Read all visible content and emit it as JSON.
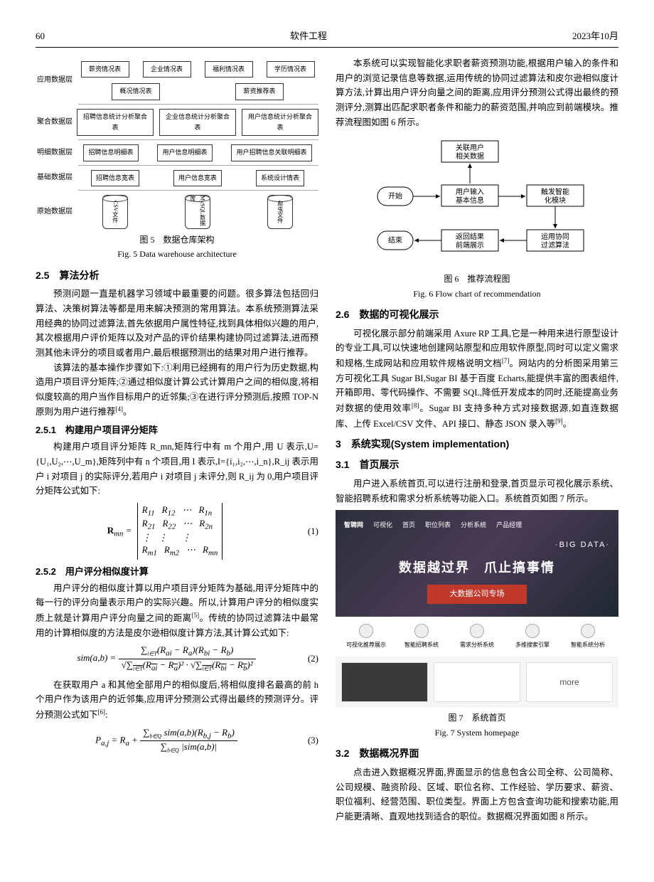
{
  "header": {
    "page_num": "60",
    "journal": "软件工程",
    "date": "2023年10月"
  },
  "fig5": {
    "layers": [
      {
        "label": "应用数据层",
        "boxes": [
          "薪资情况表",
          "企业情况表",
          "福利情况表",
          "学历情况表",
          "概况情况表",
          "薪资推荐表"
        ]
      },
      {
        "label": "聚合数据层",
        "boxes": [
          "招聘信息统计分析聚合表",
          "企业信息统计分析聚合表",
          "用户信息统计分析聚合表"
        ]
      },
      {
        "label": "明细数据层",
        "boxes": [
          "招聘信息明细表",
          "用户信息明细表",
          "用户招聘信息关联明细表"
        ]
      },
      {
        "label": "基础数据层",
        "boxes": [
          "招聘信息宽表",
          "用户信息宽表",
          "系统设计情表"
        ]
      },
      {
        "label": "原始数据层",
        "cylinders": [
          "CSV文件",
          "MySQL数据库",
          "爬虫文件"
        ]
      }
    ],
    "caption_cn": "图 5　数据仓库架构",
    "caption_en": "Fig. 5 Data warehouse architecture"
  },
  "sec25": {
    "title": "2.5　算法分析",
    "p1": "预测问题一直是机器学习领域中最重要的问题。很多算法包括回归算法、决策树算法等都是用来解决预测的常用算法。本系统预测算法采用经典的协同过滤算法,首先依据用户属性特征,找到具体相似兴趣的用户,其次根据用户评价矩阵以及对产品的评价结果构建协同过滤算法,进而预测其他未评分的项目或者用户,最后根据预测出的结果对用户进行推荐。",
    "p2": "该算法的基本操作步骤如下:①利用已经拥有的用户行为历史数据,构造用户项目评分矩阵;②通过相似度计算公式计算用户之间的相似度,将相似度较高的用户当作目标用户的近邻集;③在进行评分预测后,按照 TOP-N 原则为用户进行推荐"
  },
  "sec251": {
    "title": "2.5.1　构建用户项目评分矩阵",
    "p1": "构建用户项目评分矩阵 R_mn,矩阵行中有 m 个用户,用 U 表示,U={U₁,U₂,⋯,U_m},矩阵列中有 n 个项目,用 I 表示,I={i₁,i₂,⋯,i_n},R_ij 表示用户 i 对项目 j 的实际评分,若用户 i 对项目 j 未评分,则 R_ij 为 0,用户项目评分矩阵公式如下:"
  },
  "eq1_num": "(1)",
  "sec252": {
    "title": "2.5.2　用户评分相似度计算",
    "p1": "用户评分的相似度计算以用户项目评分矩阵为基础,用评分矩阵中的每一行的评分向量表示用户的实际兴趣。所以,计算用户评分的相似度实质上就是计算用户评分向量之间的距离",
    "p1_suffix": "。传统的协同过滤算法中最常用的计算相似度的方法是皮尔逊相似度计算方法,其计算公式如下:"
  },
  "eq2_num": "(2)",
  "sec252_p2": "在获取用户 a 和其他全部用户的相似度后,将相似度排名最高的前 h 个用户作为该用户的近邻集,应用评分预测公式得出最终的预测评分。评分预测公式如下",
  "eq3_num": "(3)",
  "col2_intro": "本系统可以实现智能化求职者薪资预测功能,根据用户输入的条件和用户的浏览记录信息等数据,运用传统的协同过滤算法和皮尔逊相似度计算方法,计算出用户评分向量之间的距离,应用评分预测公式得出最终的预测评分,测算出匹配求职者条件和能力的薪资范围,并响应到前端模块。推荐流程图如图 6 所示。",
  "fig6": {
    "nodes": {
      "start": "开始",
      "relate": "关联用户相关数据",
      "input": "用户输入基本信息",
      "trigger": "触发智能化模块",
      "cf": "运用协同过滤算法",
      "render": "返回结果前端展示",
      "end": "结束"
    },
    "caption_cn": "图 6　推荐流程图",
    "caption_en": "Fig. 6 Flow chart of recommendation"
  },
  "sec26": {
    "title": "2.6　数据的可视化展示",
    "p1": "可视化展示部分前端采用 Axure RP 工具,它是一种用来进行原型设计的专业工具,可以快速地创建网站原型和应用软件原型,同时可以定义需求和规格,生成网站和应用软件规格说明文档",
    "p1b": "。网站内的分析图采用第三方可视化工具 Sugar BI,Sugar BI 基于百度 Echarts,能提供丰富的图表组件,开箱即用、零代码操作、不需要 SQL,降低开发成本的同时,还能提高业务对数据的使用效率",
    "p1c": "。Sugar BI 支持多种方式对接数据源,如直连数据库、上传 Excel/CSV 文件、API 接口、静态 JSON 录入等"
  },
  "sec3": {
    "title": "3　系统实现(System implementation)"
  },
  "sec31": {
    "title": "3.1　首页展示",
    "p1": "用户进入系统首页,可以进行注册和登录,首页显示可视化展示系统、智能招聘系统和需求分析系统等功能入口。系统首页如图 7 所示。"
  },
  "fig7": {
    "logo": "智聘网",
    "nav": [
      "可视化",
      "首页",
      "职位列表",
      "分析系统",
      "产品经理"
    ],
    "bigdata": "·BIG DATA·",
    "slogan": "数据越过界　爪止搞事情",
    "cta": "大数据公司专场",
    "icons": [
      "可视化推荐展示",
      "智能招聘系统",
      "需求分析系统",
      "多维搜索引擎",
      "智能系统分析"
    ],
    "card_more": "more",
    "caption_cn": "图 7　系统首页",
    "caption_en": "Fig. 7 System homepage"
  },
  "sec32": {
    "title": "3.2　数据概况界面",
    "p1": "点击进入数据概况界面,界面显示的信息包含公司全称、公司简称、公司规模、融资阶段、区域、职位名称、工作经验、学历要求、薪资、职位福利、经营范围、职位类型。界面上方包含查询功能和搜索功能,用户能更清晰、直观地找到适合的职位。数据概况界面如图 8 所示。"
  },
  "refs": {
    "r4": "[4]",
    "r5": "[5]",
    "r6": "[6]",
    "r7": "[7]",
    "r8": "[8]",
    "r9": "[9]"
  }
}
